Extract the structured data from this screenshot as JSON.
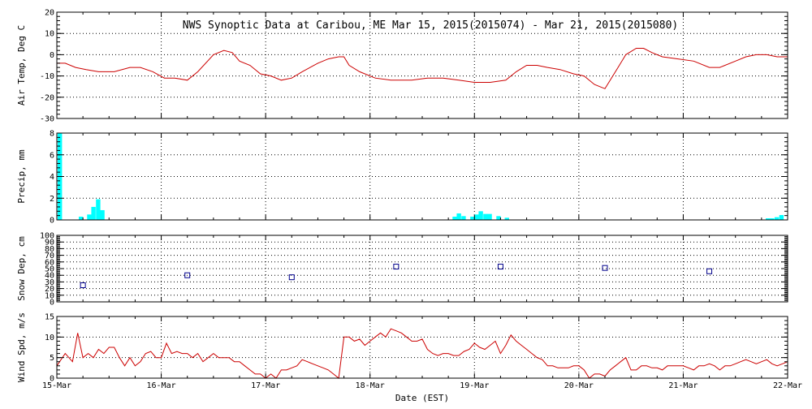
{
  "figure": {
    "title": "NWS Synoptic Data at Caribou, ME   Mar 15, 2015(2015074) - Mar 21, 2015(2015080)",
    "xlabel": "Date (EST)"
  },
  "colors": {
    "line": "#cc0000",
    "bar": "#00ffff",
    "marker": "#00008b",
    "axis": "#000000",
    "grid": "#000000"
  },
  "chart_data": [
    {
      "id": "air_temp",
      "type": "line",
      "ylabel": "Air Temp, Deg C",
      "ylim": [
        -30,
        20
      ],
      "yticks": [
        -30,
        -20,
        -10,
        0,
        10,
        20
      ],
      "xlim": [
        0,
        7
      ],
      "grid": true,
      "series": [
        {
          "x": [
            0,
            0.08,
            0.18,
            0.28,
            0.4,
            0.55,
            0.7,
            0.8,
            0.92,
            1.03,
            1.13,
            1.25,
            1.35,
            1.5,
            1.6,
            1.68,
            1.75,
            1.85,
            1.95,
            2.05,
            2.15,
            2.25,
            2.35,
            2.5,
            2.6,
            2.7,
            2.75,
            2.8,
            2.9,
            3.05,
            3.2,
            3.4,
            3.55,
            3.7,
            3.85,
            4.0,
            4.15,
            4.3,
            4.4,
            4.5,
            4.6,
            4.7,
            4.82,
            4.95,
            5.05,
            5.15,
            5.25,
            5.35,
            5.45,
            5.55,
            5.62,
            5.7,
            5.8,
            5.95,
            6.1,
            6.25,
            6.35,
            6.5,
            6.6,
            6.7,
            6.8,
            6.9,
            7.0
          ],
          "y": [
            -4,
            -4,
            -6,
            -7,
            -8,
            -8,
            -6,
            -6,
            -8,
            -11,
            -11,
            -12,
            -8,
            0,
            2,
            1,
            -3,
            -5,
            -9,
            -10,
            -12,
            -11,
            -8,
            -4,
            -2,
            -1,
            -1,
            -5,
            -8,
            -11,
            -12,
            -12,
            -11,
            -11,
            -12,
            -13,
            -13,
            -12,
            -8,
            -5,
            -5,
            -6,
            -7,
            -9,
            -10,
            -14,
            -16,
            -8,
            0,
            3,
            3,
            1,
            -1,
            -2,
            -3,
            -6,
            -6,
            -3,
            -1,
            0,
            0,
            -1,
            -1
          ]
        }
      ]
    },
    {
      "id": "precip",
      "type": "bar",
      "ylabel": "Precip, mm",
      "ylim": [
        0,
        8
      ],
      "yticks": [
        0,
        2,
        4,
        6,
        8
      ],
      "xlim": [
        0,
        7
      ],
      "grid": true,
      "bar_width": 0.042,
      "bars": [
        {
          "x": 0.0,
          "v": 8.0
        },
        {
          "x": 0.21,
          "v": 0.3
        },
        {
          "x": 0.29,
          "v": 0.5
        },
        {
          "x": 0.33,
          "v": 1.2
        },
        {
          "x": 0.375,
          "v": 1.9
        },
        {
          "x": 0.415,
          "v": 0.9
        },
        {
          "x": 3.79,
          "v": 0.3
        },
        {
          "x": 3.83,
          "v": 0.6
        },
        {
          "x": 3.875,
          "v": 0.35
        },
        {
          "x": 3.96,
          "v": 0.3
        },
        {
          "x": 4.0,
          "v": 0.5
        },
        {
          "x": 4.04,
          "v": 0.8
        },
        {
          "x": 4.085,
          "v": 0.55
        },
        {
          "x": 4.125,
          "v": 0.55
        },
        {
          "x": 4.21,
          "v": 0.35
        },
        {
          "x": 4.29,
          "v": 0.2
        },
        {
          "x": 6.79,
          "v": 0.15
        },
        {
          "x": 6.83,
          "v": 0.15
        },
        {
          "x": 6.875,
          "v": 0.25
        },
        {
          "x": 6.92,
          "v": 0.45
        }
      ]
    },
    {
      "id": "snow_depth",
      "type": "scatter",
      "ylabel": "Snow Dep, cm",
      "ylim": [
        0,
        100
      ],
      "yticks": [
        0,
        10,
        20,
        30,
        40,
        50,
        60,
        70,
        80,
        90,
        100
      ],
      "xlim": [
        0,
        7
      ],
      "grid": true,
      "points": [
        {
          "x": 0.25,
          "y": 25
        },
        {
          "x": 1.25,
          "y": 40
        },
        {
          "x": 2.25,
          "y": 37
        },
        {
          "x": 3.25,
          "y": 53
        },
        {
          "x": 4.25,
          "y": 53
        },
        {
          "x": 5.25,
          "y": 51
        },
        {
          "x": 6.25,
          "y": 46
        }
      ]
    },
    {
      "id": "wind_speed",
      "type": "line",
      "ylabel": "Wind Spd, m/s",
      "ylim": [
        0,
        15
      ],
      "yticks": [
        0,
        5,
        10,
        15
      ],
      "xlim": [
        0,
        7
      ],
      "grid": true,
      "series": [
        {
          "x": [
            0,
            0.08,
            0.15,
            0.2,
            0.25,
            0.3,
            0.35,
            0.4,
            0.45,
            0.5,
            0.55,
            0.6,
            0.65,
            0.7,
            0.75,
            0.8,
            0.85,
            0.9,
            0.95,
            1.0,
            1.05,
            1.1,
            1.15,
            1.2,
            1.25,
            1.3,
            1.35,
            1.4,
            1.45,
            1.5,
            1.55,
            1.6,
            1.65,
            1.7,
            1.75,
            1.8,
            1.85,
            1.9,
            1.95,
            2.0,
            2.05,
            2.1,
            2.15,
            2.2,
            2.25,
            2.3,
            2.35,
            2.4,
            2.45,
            2.5,
            2.55,
            2.6,
            2.65,
            2.7,
            2.75,
            2.8,
            2.85,
            2.9,
            2.95,
            3.0,
            3.05,
            3.1,
            3.15,
            3.2,
            3.25,
            3.3,
            3.35,
            3.4,
            3.45,
            3.5,
            3.55,
            3.6,
            3.65,
            3.7,
            3.75,
            3.8,
            3.85,
            3.9,
            3.95,
            4.0,
            4.05,
            4.1,
            4.15,
            4.2,
            4.25,
            4.3,
            4.35,
            4.4,
            4.45,
            4.5,
            4.55,
            4.6,
            4.65,
            4.7,
            4.75,
            4.8,
            4.85,
            4.9,
            4.95,
            5.0,
            5.05,
            5.1,
            5.15,
            5.2,
            5.25,
            5.3,
            5.35,
            5.4,
            5.45,
            5.5,
            5.55,
            5.6,
            5.65,
            5.7,
            5.75,
            5.8,
            5.85,
            5.9,
            5.95,
            6.0,
            6.05,
            6.1,
            6.15,
            6.2,
            6.25,
            6.3,
            6.35,
            6.4,
            6.45,
            6.5,
            6.55,
            6.6,
            6.65,
            6.7,
            6.75,
            6.8,
            6.85,
            6.9,
            6.95,
            7.0
          ],
          "y": [
            3,
            6,
            4,
            11,
            5,
            6,
            5,
            7,
            6,
            7.5,
            7.5,
            5,
            3,
            5,
            3,
            4,
            6,
            6.5,
            5,
            5,
            8.5,
            6,
            6.5,
            6,
            6,
            5,
            6,
            4,
            5,
            6,
            5,
            5,
            5,
            4,
            4,
            3,
            2,
            1,
            1,
            0,
            1,
            0,
            2,
            2,
            2.5,
            3,
            4.5,
            4,
            3.5,
            3,
            2.5,
            2,
            1,
            0,
            10,
            10,
            9,
            9.5,
            8,
            9,
            10,
            11,
            10,
            12,
            11.5,
            11,
            10,
            9,
            9,
            9.5,
            7,
            6,
            5.5,
            6,
            6,
            5.5,
            5.5,
            6.5,
            7,
            8.5,
            7.5,
            7,
            8,
            9,
            6,
            8,
            10.5,
            9,
            8,
            7,
            6,
            5,
            4.5,
            3,
            3,
            2.5,
            2.5,
            2.5,
            3,
            3,
            2,
            0,
            1,
            1,
            0.5,
            2,
            3,
            4,
            5,
            2,
            2,
            3,
            3,
            2.5,
            2.5,
            2,
            3,
            3,
            3,
            3,
            2.5,
            2,
            3,
            3,
            3.5,
            3,
            2,
            3,
            3,
            3.5,
            4,
            4.5,
            4,
            3.5,
            4,
            4.5,
            3.5,
            3,
            3.5,
            4
          ]
        }
      ],
      "xticks": [
        {
          "x": 0,
          "label": "15-Mar"
        },
        {
          "x": 1,
          "label": "16-Mar"
        },
        {
          "x": 2,
          "label": "17-Mar"
        },
        {
          "x": 3,
          "label": "18-Mar"
        },
        {
          "x": 4,
          "label": "19-Mar"
        },
        {
          "x": 5,
          "label": "20-Mar"
        },
        {
          "x": 6,
          "label": "21-Mar"
        },
        {
          "x": 7,
          "label": "22-Mar"
        }
      ]
    }
  ]
}
